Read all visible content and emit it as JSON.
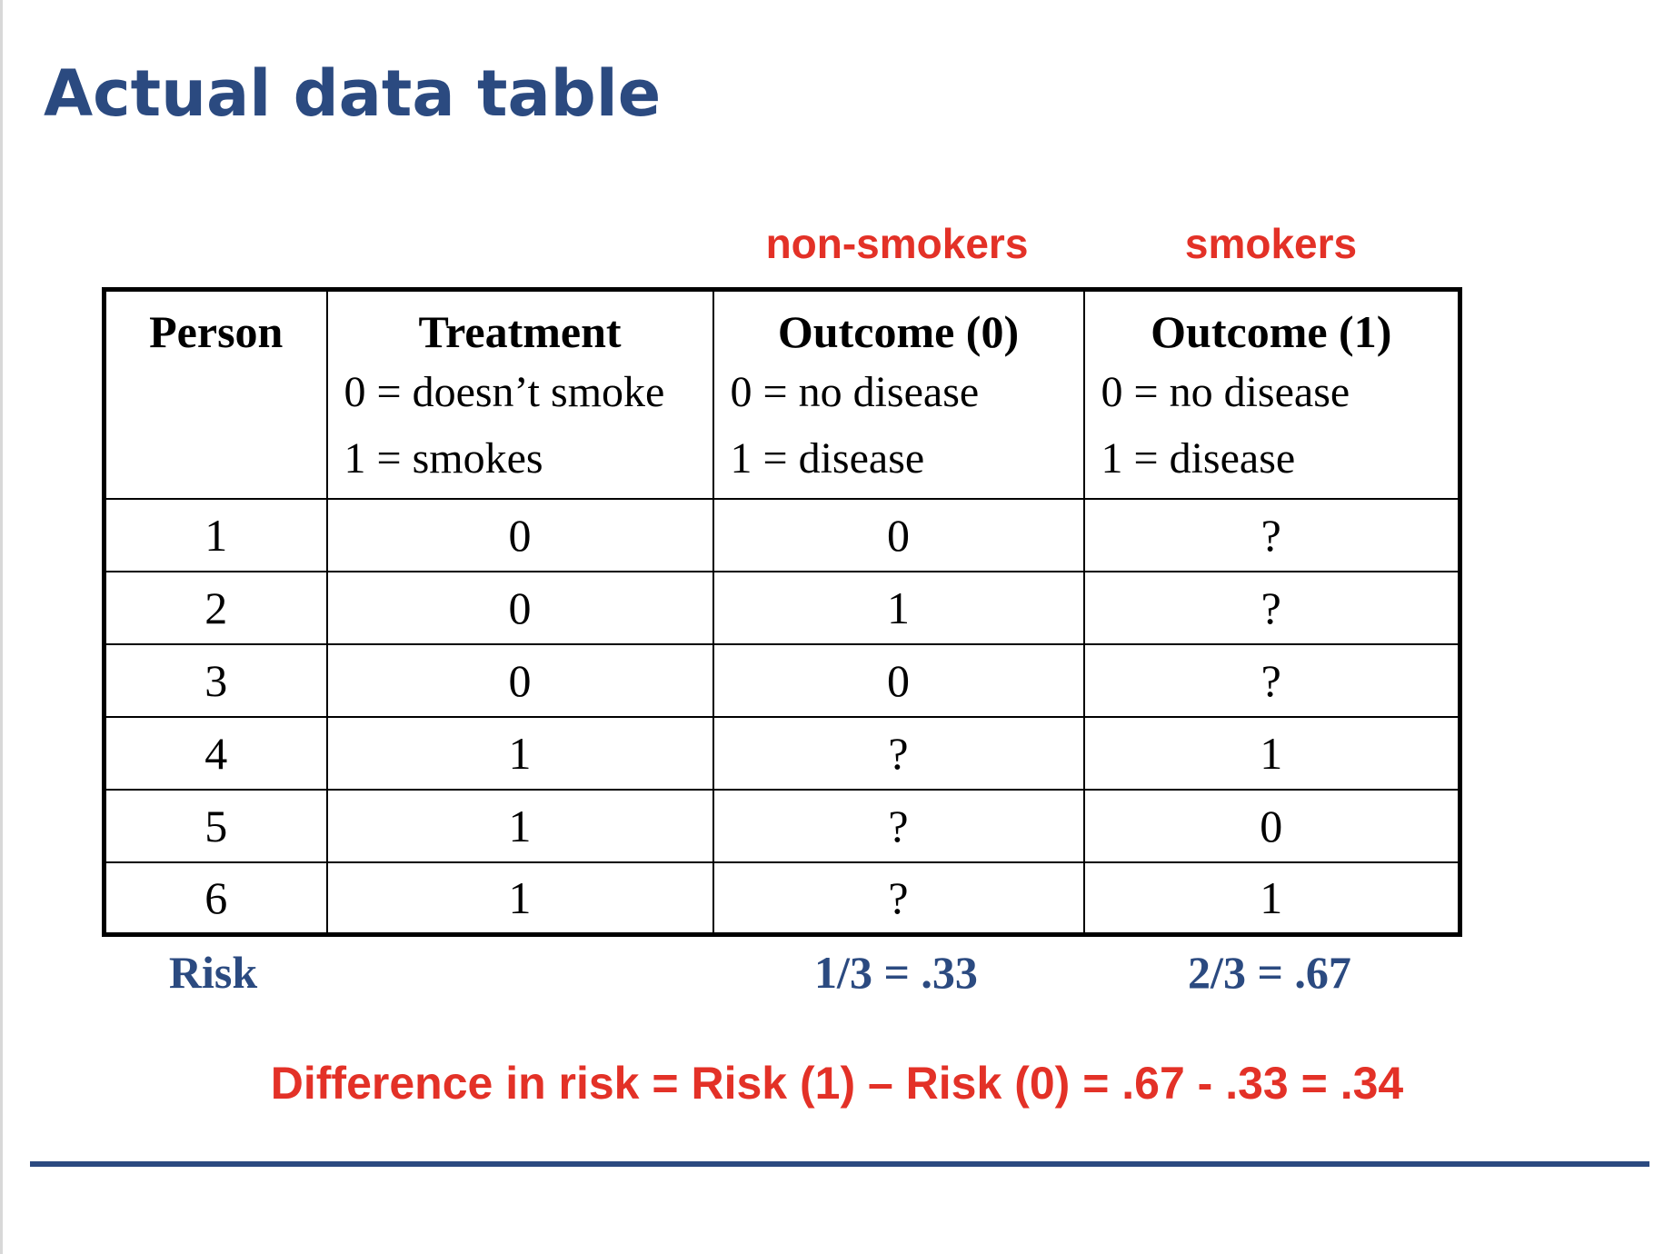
{
  "title": "Actual data table",
  "group_labels": {
    "outcome0": "non-smokers",
    "outcome1": "smokers"
  },
  "table": {
    "headers": [
      {
        "title": "Person",
        "lines": []
      },
      {
        "title": "Treatment",
        "lines": [
          "0 = doesn’t smoke",
          "1 = smokes"
        ]
      },
      {
        "title": "Outcome (0)",
        "lines": [
          "0 = no disease",
          "1 = disease"
        ]
      },
      {
        "title": "Outcome (1)",
        "lines": [
          "0 = no disease",
          "1 = disease"
        ]
      }
    ],
    "rows": [
      [
        "1",
        "0",
        "0",
        "?"
      ],
      [
        "2",
        "0",
        "1",
        "?"
      ],
      [
        "3",
        "0",
        "0",
        "?"
      ],
      [
        "4",
        "1",
        "?",
        "1"
      ],
      [
        "5",
        "1",
        "?",
        "0"
      ],
      [
        "6",
        "1",
        "?",
        "1"
      ]
    ]
  },
  "risk": {
    "label": "Risk",
    "outcome0": "1/3 = .33",
    "outcome1": "2/3 = .67"
  },
  "difference": "Difference in risk = Risk (1) – Risk (0) = .67 - .33 = .34",
  "colors": {
    "title": "#2b4a80",
    "accent_red": "#e33127",
    "rule": "#2b4a80"
  }
}
